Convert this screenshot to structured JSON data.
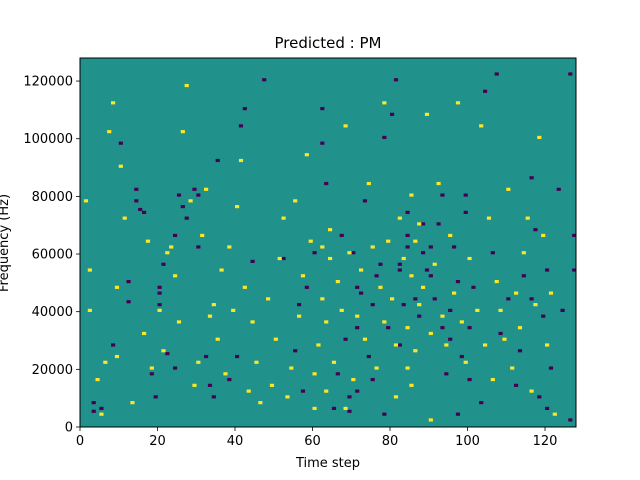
{
  "chart_data": {
    "type": "heatmap",
    "title": "Predicted : PM",
    "xlabel": "Time step",
    "ylabel": "Frequency (Hz)",
    "xlim": [
      0,
      128
    ],
    "ylim": [
      0,
      128000
    ],
    "x_ticks": [
      0,
      20,
      40,
      60,
      80,
      100,
      120
    ],
    "y_ticks": [
      0,
      20000,
      40000,
      60000,
      80000,
      100000,
      120000
    ],
    "grid": false,
    "legend": "none",
    "colors": {
      "background": "#21918c",
      "low": "#440154",
      "high": "#fde725"
    },
    "grid_shape": {
      "time_steps": 128,
      "frequency_bins": 128
    },
    "low_cells": [
      [
        3,
        5
      ],
      [
        3,
        8
      ],
      [
        5,
        6
      ],
      [
        8,
        28
      ],
      [
        10,
        98
      ],
      [
        12,
        43
      ],
      [
        12,
        50
      ],
      [
        14,
        78
      ],
      [
        14,
        82
      ],
      [
        15,
        75
      ],
      [
        16,
        74
      ],
      [
        18,
        18
      ],
      [
        19,
        10
      ],
      [
        20,
        42
      ],
      [
        20,
        46
      ],
      [
        20,
        48
      ],
      [
        21,
        56
      ],
      [
        22,
        25
      ],
      [
        24,
        20
      ],
      [
        24,
        66
      ],
      [
        25,
        80
      ],
      [
        26,
        76
      ],
      [
        27,
        72
      ],
      [
        29,
        82
      ],
      [
        30,
        62
      ],
      [
        30,
        80
      ],
      [
        32,
        24
      ],
      [
        33,
        14
      ],
      [
        34,
        10
      ],
      [
        35,
        92
      ],
      [
        38,
        16
      ],
      [
        40,
        24
      ],
      [
        41,
        104
      ],
      [
        42,
        110
      ],
      [
        44,
        57
      ],
      [
        47,
        120
      ],
      [
        52,
        58
      ],
      [
        55,
        26
      ],
      [
        56,
        42
      ],
      [
        57,
        12
      ],
      [
        58,
        48
      ],
      [
        60,
        60
      ],
      [
        62,
        98
      ],
      [
        62,
        110
      ],
      [
        63,
        84
      ],
      [
        65,
        6
      ],
      [
        66,
        18
      ],
      [
        67,
        66
      ],
      [
        68,
        30
      ],
      [
        69,
        5
      ],
      [
        69,
        10
      ],
      [
        70,
        60
      ],
      [
        71,
        12
      ],
      [
        71,
        34
      ],
      [
        71,
        48
      ],
      [
        72,
        46
      ],
      [
        73,
        78
      ],
      [
        74,
        24
      ],
      [
        75,
        42
      ],
      [
        75,
        16
      ],
      [
        76,
        52
      ],
      [
        77,
        56
      ],
      [
        78,
        4
      ],
      [
        78,
        100
      ],
      [
        79,
        34
      ],
      [
        80,
        108
      ],
      [
        81,
        120
      ],
      [
        82,
        28
      ],
      [
        82,
        54
      ],
      [
        82,
        56
      ],
      [
        83,
        42
      ],
      [
        84,
        62
      ],
      [
        84,
        66
      ],
      [
        84,
        74
      ],
      [
        86,
        44
      ],
      [
        87,
        38
      ],
      [
        88,
        60
      ],
      [
        88,
        70
      ],
      [
        89,
        54
      ],
      [
        90,
        52
      ],
      [
        90,
        62
      ],
      [
        91,
        44
      ],
      [
        92,
        70
      ],
      [
        93,
        80
      ],
      [
        93,
        34
      ],
      [
        94,
        18
      ],
      [
        95,
        30
      ],
      [
        95,
        40
      ],
      [
        96,
        62
      ],
      [
        97,
        50
      ],
      [
        97,
        4
      ],
      [
        98,
        24
      ],
      [
        99,
        80
      ],
      [
        99,
        74
      ],
      [
        100,
        34
      ],
      [
        100,
        16
      ],
      [
        101,
        48
      ],
      [
        103,
        8
      ],
      [
        104,
        116
      ],
      [
        106,
        60
      ],
      [
        107,
        122
      ],
      [
        108,
        32
      ],
      [
        110,
        44
      ],
      [
        112,
        14
      ],
      [
        113,
        26
      ],
      [
        114,
        52
      ],
      [
        116,
        86
      ],
      [
        116,
        44
      ],
      [
        117,
        68
      ],
      [
        118,
        10
      ],
      [
        119,
        38
      ],
      [
        120,
        54
      ],
      [
        120,
        6
      ],
      [
        121,
        20
      ],
      [
        123,
        82
      ],
      [
        124,
        40
      ],
      [
        126,
        122
      ],
      [
        126,
        2
      ],
      [
        127,
        66
      ],
      [
        127,
        54
      ]
    ],
    "high_cells": [
      [
        1,
        78
      ],
      [
        2,
        54
      ],
      [
        2,
        40
      ],
      [
        4,
        16
      ],
      [
        5,
        4
      ],
      [
        6,
        22
      ],
      [
        7,
        102
      ],
      [
        8,
        112
      ],
      [
        9,
        48
      ],
      [
        9,
        24
      ],
      [
        10,
        90
      ],
      [
        11,
        72
      ],
      [
        13,
        8
      ],
      [
        16,
        32
      ],
      [
        17,
        64
      ],
      [
        18,
        20
      ],
      [
        20,
        40
      ],
      [
        21,
        26
      ],
      [
        22,
        60
      ],
      [
        23,
        62
      ],
      [
        24,
        52
      ],
      [
        25,
        36
      ],
      [
        26,
        102
      ],
      [
        27,
        118
      ],
      [
        28,
        78
      ],
      [
        29,
        14
      ],
      [
        30,
        22
      ],
      [
        31,
        66
      ],
      [
        32,
        82
      ],
      [
        33,
        38
      ],
      [
        34,
        42
      ],
      [
        35,
        30
      ],
      [
        36,
        54
      ],
      [
        37,
        18
      ],
      [
        38,
        62
      ],
      [
        39,
        40
      ],
      [
        40,
        76
      ],
      [
        41,
        92
      ],
      [
        42,
        48
      ],
      [
        43,
        12
      ],
      [
        44,
        36
      ],
      [
        45,
        22
      ],
      [
        46,
        8
      ],
      [
        48,
        44
      ],
      [
        49,
        14
      ],
      [
        50,
        30
      ],
      [
        51,
        58
      ],
      [
        52,
        72
      ],
      [
        53,
        10
      ],
      [
        54,
        20
      ],
      [
        55,
        78
      ],
      [
        56,
        38
      ],
      [
        57,
        52
      ],
      [
        58,
        94
      ],
      [
        59,
        64
      ],
      [
        60,
        18
      ],
      [
        60,
        6
      ],
      [
        61,
        28
      ],
      [
        62,
        44
      ],
      [
        62,
        62
      ],
      [
        63,
        12
      ],
      [
        63,
        36
      ],
      [
        64,
        58
      ],
      [
        64,
        68
      ],
      [
        65,
        22
      ],
      [
        66,
        50
      ],
      [
        67,
        40
      ],
      [
        68,
        104
      ],
      [
        68,
        6
      ],
      [
        69,
        60
      ],
      [
        70,
        16
      ],
      [
        71,
        38
      ],
      [
        72,
        54
      ],
      [
        73,
        30
      ],
      [
        74,
        84
      ],
      [
        75,
        62
      ],
      [
        76,
        20
      ],
      [
        77,
        48
      ],
      [
        78,
        36
      ],
      [
        78,
        112
      ],
      [
        79,
        64
      ],
      [
        80,
        44
      ],
      [
        81,
        28
      ],
      [
        81,
        10
      ],
      [
        82,
        72
      ],
      [
        83,
        58
      ],
      [
        84,
        20
      ],
      [
        84,
        34
      ],
      [
        85,
        52
      ],
      [
        85,
        80
      ],
      [
        85,
        14
      ],
      [
        86,
        64
      ],
      [
        86,
        26
      ],
      [
        87,
        42
      ],
      [
        87,
        70
      ],
      [
        88,
        48
      ],
      [
        89,
        108
      ],
      [
        90,
        32
      ],
      [
        90,
        2
      ],
      [
        91,
        56
      ],
      [
        92,
        84
      ],
      [
        93,
        38
      ],
      [
        94,
        28
      ],
      [
        95,
        66
      ],
      [
        96,
        46
      ],
      [
        97,
        112
      ],
      [
        98,
        36
      ],
      [
        99,
        22
      ],
      [
        100,
        58
      ],
      [
        102,
        40
      ],
      [
        103,
        104
      ],
      [
        104,
        28
      ],
      [
        105,
        72
      ],
      [
        106,
        16
      ],
      [
        107,
        50
      ],
      [
        108,
        40
      ],
      [
        109,
        30
      ],
      [
        110,
        82
      ],
      [
        111,
        20
      ],
      [
        112,
        46
      ],
      [
        113,
        34
      ],
      [
        114,
        60
      ],
      [
        115,
        72
      ],
      [
        116,
        12
      ],
      [
        117,
        42
      ],
      [
        118,
        100
      ],
      [
        119,
        66
      ],
      [
        120,
        28
      ],
      [
        121,
        46
      ],
      [
        122,
        4
      ]
    ]
  }
}
